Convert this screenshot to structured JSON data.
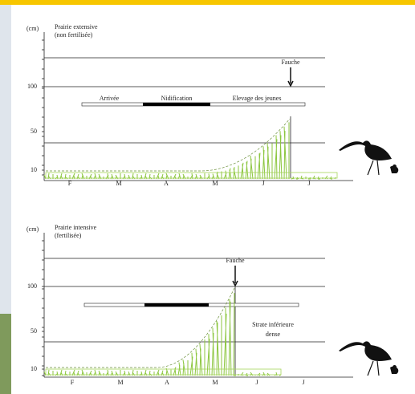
{
  "top_panel": {
    "unit": "(cm)",
    "title": [
      "Prairie extensive",
      "(non fertilisée)"
    ],
    "yticks": [
      "100",
      "50",
      "10"
    ],
    "mowing": "Fauche",
    "phases": [
      "Arrivée",
      "Nidification",
      "Elevage des jeunes"
    ],
    "months": [
      "F",
      "M",
      "A",
      "M",
      "J",
      "J"
    ]
  },
  "bottom_panel": {
    "unit": "(cm)",
    "title": [
      "Prairie intensive",
      "(fertilisée)"
    ],
    "yticks": [
      "100",
      "50",
      "10"
    ],
    "mowing": "Fauche",
    "annotation": [
      "Strate inférieure",
      "dense"
    ],
    "months": [
      "F",
      "M",
      "A",
      "M",
      "J",
      "J"
    ]
  }
}
